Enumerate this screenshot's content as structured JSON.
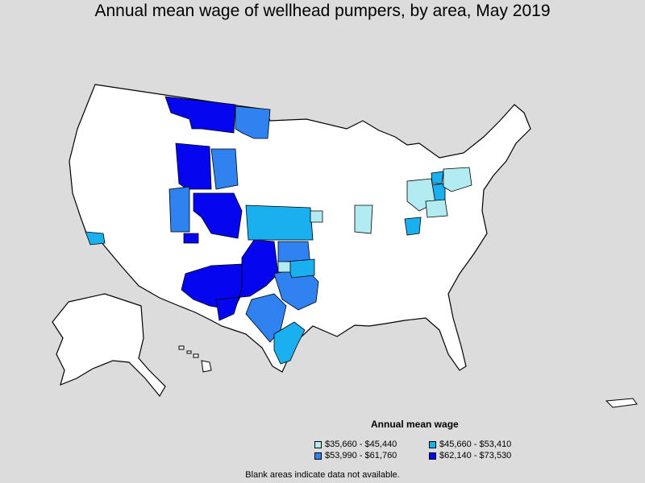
{
  "title": "Annual mean wage of wellhead pumpers, by area, May 2019",
  "legend": {
    "title": "Annual mean wage",
    "items": [
      {
        "label": "$35,660 - $45,440",
        "color": "#b2ebf2"
      },
      {
        "label": "$45,660 - $53,410",
        "color": "#1ab0f0"
      },
      {
        "label": "$53,990 - $61,760",
        "color": "#2f82f0"
      },
      {
        "label": "$62,140 - $73,530",
        "color": "#0505f0"
      }
    ]
  },
  "footnote": "Blank areas indicate data not available.",
  "colors": {
    "background": "#dcdcdc",
    "land": "#ffffff",
    "border": "#000000"
  }
}
